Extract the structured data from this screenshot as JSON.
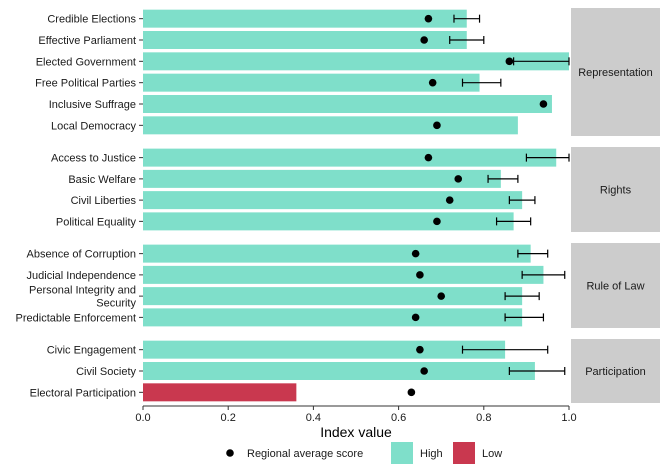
{
  "chart_data": {
    "type": "bar",
    "orientation": "horizontal",
    "xlabel": "Index value",
    "xlim": [
      0,
      1
    ],
    "xticks": [
      "0.0",
      "0.2",
      "0.4",
      "0.6",
      "0.8",
      "1.0"
    ],
    "grid": false,
    "colors": {
      "High": "#7fdfca",
      "Low": "#c9384f",
      "panel": "#cccccc",
      "marker": "#000000"
    },
    "legend": {
      "position": "bottom",
      "items": [
        {
          "label": "Regional average score",
          "kind": "point"
        },
        {
          "label": "High",
          "kind": "fill",
          "color": "#7fdfca"
        },
        {
          "label": "Low",
          "kind": "fill",
          "color": "#c9384f"
        }
      ]
    },
    "facets": [
      {
        "name": "Representation",
        "rows": [
          {
            "label": "Credible Elections",
            "value": 0.76,
            "category": "High",
            "avg": 0.67,
            "err": [
              0.73,
              0.79
            ]
          },
          {
            "label": "Effective Parliament",
            "value": 0.76,
            "category": "High",
            "avg": 0.66,
            "err": [
              0.72,
              0.8
            ]
          },
          {
            "label": "Elected Government",
            "value": 1.0,
            "category": "High",
            "avg": 0.86,
            "err": [
              0.87,
              1.0
            ]
          },
          {
            "label": "Free Political Parties",
            "value": 0.79,
            "category": "High",
            "avg": 0.68,
            "err": [
              0.75,
              0.84
            ]
          },
          {
            "label": "Inclusive Suffrage",
            "value": 0.96,
            "category": "High",
            "avg": 0.94,
            "err": null
          },
          {
            "label": "Local Democracy",
            "value": 0.88,
            "category": "High",
            "avg": 0.69,
            "err": null
          }
        ]
      },
      {
        "name": "Rights",
        "rows": [
          {
            "label": "Access to Justice",
            "value": 0.97,
            "category": "High",
            "avg": 0.67,
            "err": [
              0.9,
              1.0
            ]
          },
          {
            "label": "Basic Welfare",
            "value": 0.84,
            "category": "High",
            "avg": 0.74,
            "err": [
              0.81,
              0.88
            ]
          },
          {
            "label": "Civil Liberties",
            "value": 0.89,
            "category": "High",
            "avg": 0.72,
            "err": [
              0.86,
              0.92
            ]
          },
          {
            "label": "Political Equality",
            "value": 0.87,
            "category": "High",
            "avg": 0.69,
            "err": [
              0.83,
              0.91
            ]
          }
        ]
      },
      {
        "name": "Rule of Law",
        "rows": [
          {
            "label": "Absence of Corruption",
            "value": 0.91,
            "category": "High",
            "avg": 0.64,
            "err": [
              0.88,
              0.95
            ]
          },
          {
            "label": "Judicial Independence",
            "value": 0.94,
            "category": "High",
            "avg": 0.65,
            "err": [
              0.89,
              0.99
            ]
          },
          {
            "label": "Personal Integrity and\nSecurity",
            "value": 0.89,
            "category": "High",
            "avg": 0.7,
            "err": [
              0.85,
              0.93
            ]
          },
          {
            "label": "Predictable Enforcement",
            "value": 0.89,
            "category": "High",
            "avg": 0.64,
            "err": [
              0.85,
              0.94
            ]
          }
        ]
      },
      {
        "name": "Participation",
        "rows": [
          {
            "label": "Civic Engagement",
            "value": 0.85,
            "category": "High",
            "avg": 0.65,
            "err": [
              0.75,
              0.95
            ]
          },
          {
            "label": "Civil Society",
            "value": 0.92,
            "category": "High",
            "avg": 0.66,
            "err": [
              0.86,
              0.99
            ]
          },
          {
            "label": "Electoral Participation",
            "value": 0.36,
            "category": "Low",
            "avg": 0.63,
            "err": null
          }
        ]
      }
    ]
  }
}
